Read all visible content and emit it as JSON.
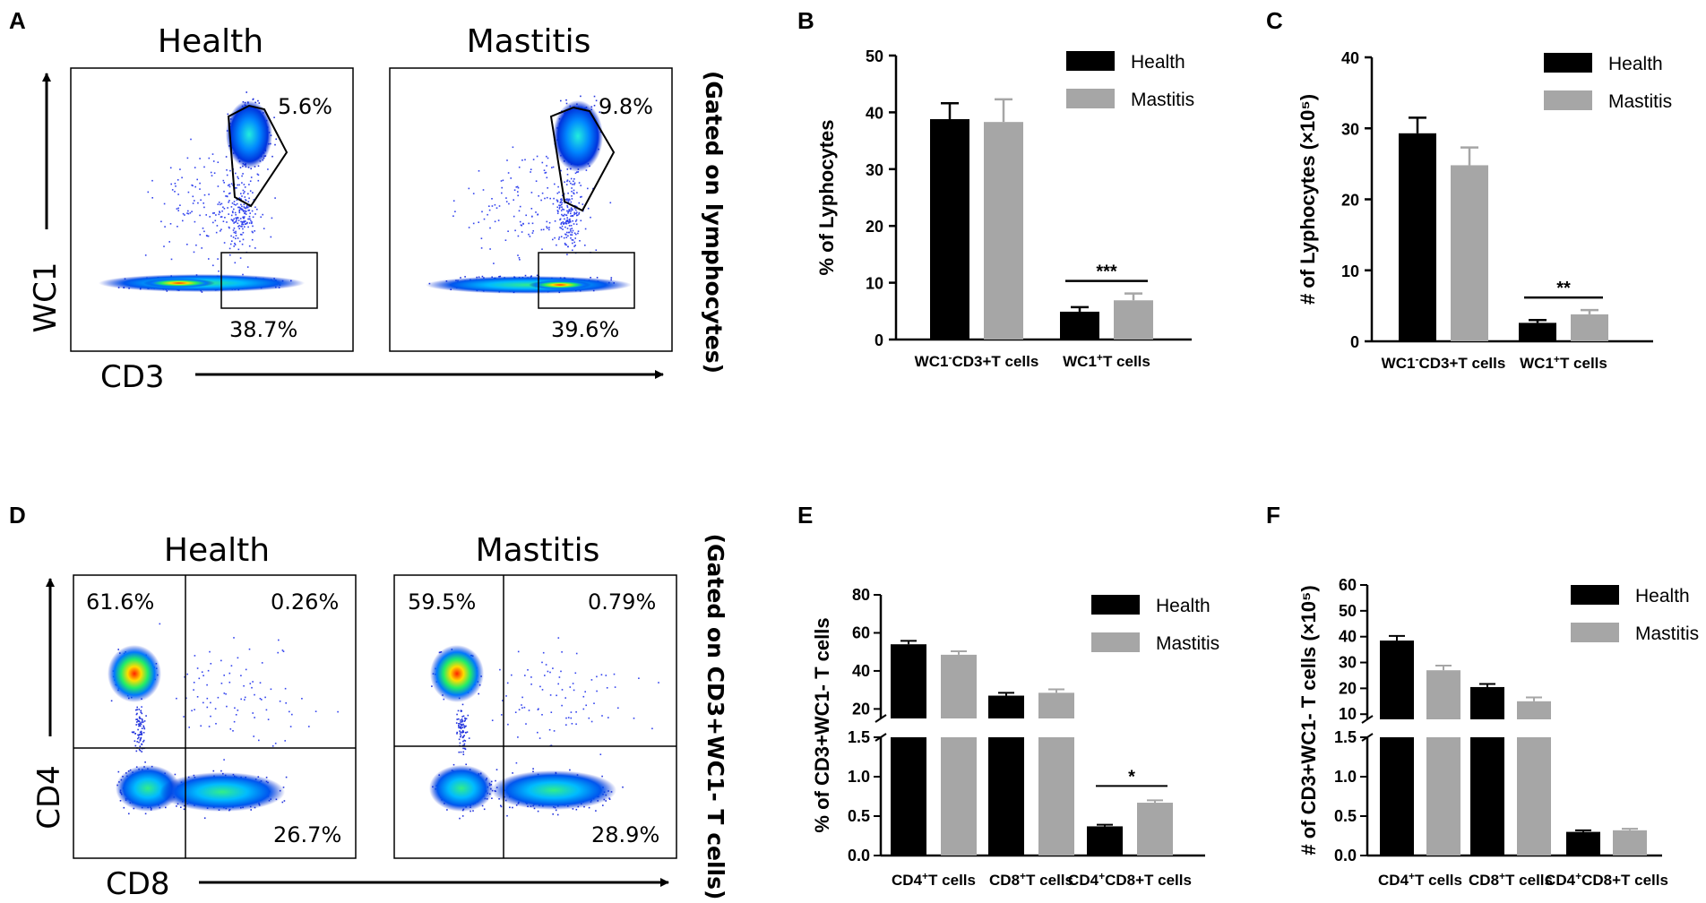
{
  "panels": {
    "A": "A",
    "B": "B",
    "C": "C",
    "D": "D",
    "E": "E",
    "F": "F"
  },
  "flow_top": {
    "gate_label": "(Gated on lymphocytes)",
    "x_axis": "CD3",
    "y_axis": "WC1",
    "plots": [
      {
        "title": "Health",
        "gate_upper": "5.6%",
        "gate_lower": "38.7%"
      },
      {
        "title": "Mastitis",
        "gate_upper": "9.8%",
        "gate_lower": "39.6%"
      }
    ]
  },
  "flow_bottom": {
    "gate_label": "(Gated on CD3+WC1- T cells)",
    "x_axis": "CD8",
    "y_axis": "CD4",
    "plots": [
      {
        "title": "Health",
        "q_ul": "61.6%",
        "q_ur": "0.26%",
        "q_lr": "26.7%"
      },
      {
        "title": "Mastitis",
        "q_ul": "59.5%",
        "q_ur": "0.79%",
        "q_lr": "28.9%"
      }
    ]
  },
  "colors": {
    "health": "#000000",
    "mastitis": "#a6a6a6"
  },
  "chart_data": [
    {
      "id": "B",
      "type": "bar",
      "ylabel": "% of Lyphocytes",
      "categories": [
        "WC1-CD3+T cells",
        "WC1+T cells"
      ],
      "cat_labels": [
        {
          "a": "WC1",
          "sup": "-",
          "b": "CD3+T cells"
        },
        {
          "a": "WC1",
          "sup": "+",
          "b": "T cells"
        }
      ],
      "series": [
        {
          "name": "Health",
          "values": [
            38.8,
            4.9
          ],
          "errors": [
            2.8,
            0.8
          ]
        },
        {
          "name": "Mastitis",
          "values": [
            38.3,
            6.9
          ],
          "errors": [
            4.0,
            1.2
          ]
        }
      ],
      "ylim": [
        0,
        50
      ],
      "yticks": [
        "0",
        "10",
        "20",
        "30",
        "40",
        "50"
      ],
      "significance": [
        {
          "category": 1,
          "label": "***"
        }
      ],
      "legend": "top-right"
    },
    {
      "id": "C",
      "type": "bar",
      "ylabel": "# of Lyphocytes (×10⁵)",
      "categories": [
        "WC1-CD3+T cells",
        "WC1+T cells"
      ],
      "cat_labels": [
        {
          "a": "WC1",
          "sup": "-",
          "b": "CD3+T cells"
        },
        {
          "a": "WC1",
          "sup": "+",
          "b": "T cells"
        }
      ],
      "series": [
        {
          "name": "Health",
          "values": [
            29.3,
            2.6
          ],
          "errors": [
            2.2,
            0.4
          ]
        },
        {
          "name": "Mastitis",
          "values": [
            24.8,
            3.8
          ],
          "errors": [
            2.5,
            0.6
          ]
        }
      ],
      "ylim": [
        0,
        40
      ],
      "yticks": [
        "0",
        "10",
        "20",
        "30",
        "40"
      ],
      "significance": [
        {
          "category": 1,
          "label": "**"
        }
      ],
      "legend": "top-right"
    },
    {
      "id": "E",
      "type": "bar",
      "ylabel": "% of CD3+WC1- T cells",
      "categories": [
        "CD4+T cells",
        "CD8+T cells",
        "CD4+CD8+T cells"
      ],
      "cat_labels": [
        {
          "a": "CD4",
          "sup": "+",
          "b": "T cells"
        },
        {
          "a": "CD8",
          "sup": "+",
          "b": "T cells"
        },
        {
          "a": "CD4",
          "sup": "+",
          "b": "CD8+T cells"
        }
      ],
      "series": [
        {
          "name": "Health",
          "values": [
            54,
            27,
            0.37
          ],
          "errors": [
            1.8,
            1.5,
            0.02
          ]
        },
        {
          "name": "Mastitis",
          "values": [
            48.5,
            28.5,
            0.67
          ],
          "errors": [
            1.8,
            1.8,
            0.03
          ]
        }
      ],
      "broken_axis": {
        "lower": [
          0,
          1.5
        ],
        "upper": [
          15,
          80
        ]
      },
      "yticks_lower": [
        "0.0",
        "0.5",
        "1.0",
        "1.5"
      ],
      "yticks_upper": [
        "20",
        "40",
        "60",
        "80"
      ],
      "significance": [
        {
          "category": 2,
          "label": "*"
        }
      ],
      "legend": "top-right"
    },
    {
      "id": "F",
      "type": "bar",
      "ylabel": "# of CD3+WC1- T cells (×10⁵)",
      "categories": [
        "CD4+T cells",
        "CD8+T cells",
        "CD4+CD8+T cells"
      ],
      "cat_labels": [
        {
          "a": "CD4",
          "sup": "+",
          "b": "T cells"
        },
        {
          "a": "CD8",
          "sup": "+",
          "b": "T cells"
        },
        {
          "a": "CD4",
          "sup": "+",
          "b": "CD8+T cells"
        }
      ],
      "series": [
        {
          "name": "Health",
          "values": [
            38.5,
            20.5,
            0.3
          ],
          "errors": [
            1.8,
            1.2,
            0.02
          ]
        },
        {
          "name": "Mastitis",
          "values": [
            27.0,
            15.0,
            0.32
          ],
          "errors": [
            1.8,
            1.5,
            0.02
          ]
        }
      ],
      "broken_axis": {
        "lower": [
          0,
          1.5
        ],
        "upper": [
          8,
          60
        ]
      },
      "yticks_lower": [
        "0.0",
        "0.5",
        "1.0",
        "1.5"
      ],
      "yticks_upper": [
        "10",
        "20",
        "30",
        "40",
        "50",
        "60"
      ],
      "significance": [],
      "legend": "top-right"
    }
  ]
}
